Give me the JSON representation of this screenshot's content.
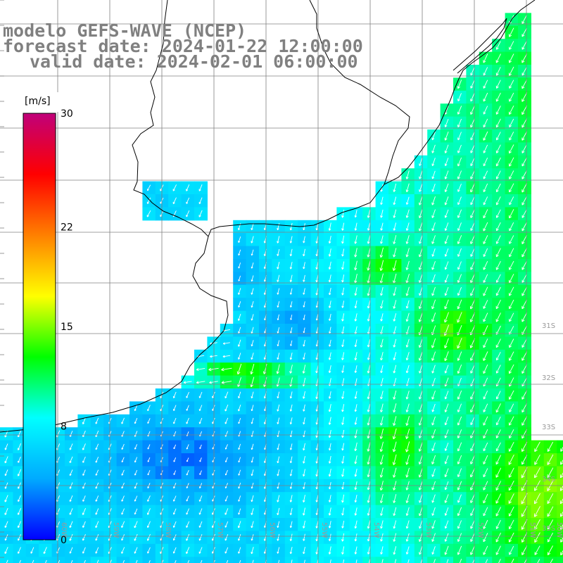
{
  "title": {
    "line1": "modelo GEFS-WAVE (NCEP)",
    "line2": "forecast date: 2024-01-22 12:00:00",
    "line3": "valid date: 2024-02-01 06:00:00"
  },
  "colorbar": {
    "unit": "[m/s]",
    "ticks": [
      {
        "value": 30,
        "label": "30"
      },
      {
        "value": 22,
        "label": "22"
      },
      {
        "value": 15,
        "label": "15"
      },
      {
        "value": 8,
        "label": "8"
      },
      {
        "value": 0,
        "label": "0"
      }
    ],
    "min": 0,
    "max": 30,
    "colors": [
      "#0000ff",
      "#00aaff",
      "#00ffff",
      "#00ff00",
      "#ffff00",
      "#ff8000",
      "#ff0000",
      "#c0007a"
    ]
  },
  "axes": {
    "longitude_labels": [
      "60W",
      "59W",
      "58W",
      "57W",
      "56W",
      "55W",
      "54W",
      "53W",
      "52W",
      "51W",
      "50W"
    ],
    "latitude_labels": [
      "31S",
      "32S",
      "33S",
      "34S",
      "35S"
    ]
  },
  "colors": {
    "land": "#ffffff",
    "coastline": "#000000",
    "grid": "#808080",
    "arrows": "#ffffff"
  }
}
